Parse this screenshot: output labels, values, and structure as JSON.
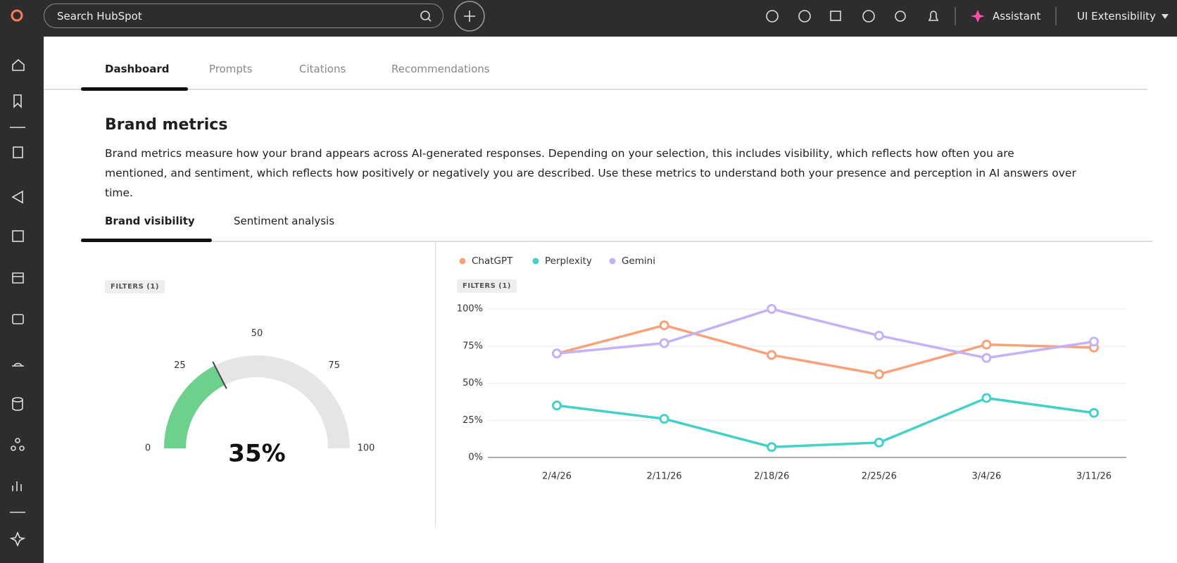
{
  "header": {
    "search_placeholder": "Search HubSpot",
    "assistant": "Assistant",
    "account": "UI Extensibility"
  },
  "tabs": [
    "Dashboard",
    "Prompts",
    "Citations",
    "Recommendations"
  ],
  "section": {
    "title": "Brand metrics",
    "description": "Brand metrics measure how your brand appears across AI-generated responses. Depending on your selection, this includes visibility, which reflects how often you are mentioned, and sentiment, which reflects how positively or negatively you are described. Use these metrics to understand both your presence and perception in AI answers over time."
  },
  "subtabs": [
    "Brand visibility",
    "Sentiment analysis"
  ],
  "chart_data": [
    {
      "type": "gauge",
      "filters": "FILTERS (1)",
      "values": [
        35
      ],
      "value_labels": [
        "35%"
      ],
      "color": "#6dd08d",
      "track_color": "#e5e5e5",
      "ylim": [
        0,
        100
      ],
      "yticks": [
        0,
        25,
        50,
        75,
        100
      ]
    },
    {
      "type": "line",
      "filters": "FILTERS (1)",
      "categories": [
        "2/4/26",
        "2/11/26",
        "2/18/26",
        "2/25/26",
        "3/4/26",
        "3/11/26"
      ],
      "series": [
        {
          "name": "ChatGPT",
          "color": "#f8a27c",
          "values": [
            70,
            89,
            69,
            56,
            76,
            74
          ]
        },
        {
          "name": "Perplexity",
          "color": "#45d0c8",
          "values": [
            35,
            26,
            7,
            10,
            40,
            30
          ]
        },
        {
          "name": "Gemini",
          "color": "#c4b2f5",
          "values": [
            70,
            77,
            100,
            82,
            67,
            78
          ]
        }
      ],
      "ylim": [
        0,
        100
      ],
      "yticks": [
        {
          "value": 0,
          "label": "0%"
        },
        {
          "value": 25,
          "label": "25%"
        },
        {
          "value": 50,
          "label": "50%"
        },
        {
          "value": 75,
          "label": "75%"
        },
        {
          "value": 100,
          "label": "100%"
        }
      ],
      "grid": true,
      "legend": "top-left"
    }
  ]
}
